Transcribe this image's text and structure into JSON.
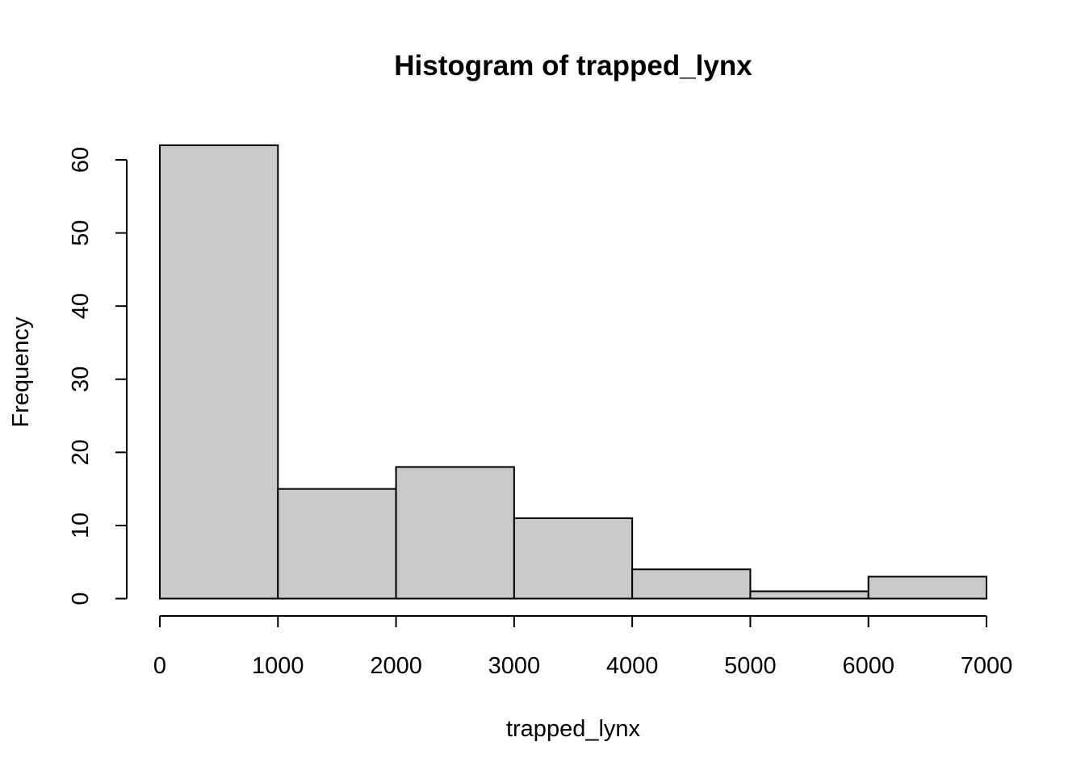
{
  "chart_data": {
    "type": "bar",
    "title": "Histogram of trapped_lynx",
    "xlabel": "trapped_lynx",
    "ylabel": "Frequency",
    "bins": [
      {
        "from": 0,
        "to": 1000,
        "count": 62
      },
      {
        "from": 1000,
        "to": 2000,
        "count": 15
      },
      {
        "from": 2000,
        "to": 3000,
        "count": 18
      },
      {
        "from": 3000,
        "to": 4000,
        "count": 11
      },
      {
        "from": 4000,
        "to": 5000,
        "count": 4
      },
      {
        "from": 5000,
        "to": 6000,
        "count": 1
      },
      {
        "from": 6000,
        "to": 7000,
        "count": 3
      }
    ],
    "x_ticks": [
      0,
      1000,
      2000,
      3000,
      4000,
      5000,
      6000,
      7000
    ],
    "y_ticks": [
      0,
      10,
      20,
      30,
      40,
      50,
      60
    ],
    "xlim": [
      0,
      7000
    ],
    "ylim": [
      0,
      62
    ],
    "bar_color": "#c9c9c9",
    "grid": false
  }
}
